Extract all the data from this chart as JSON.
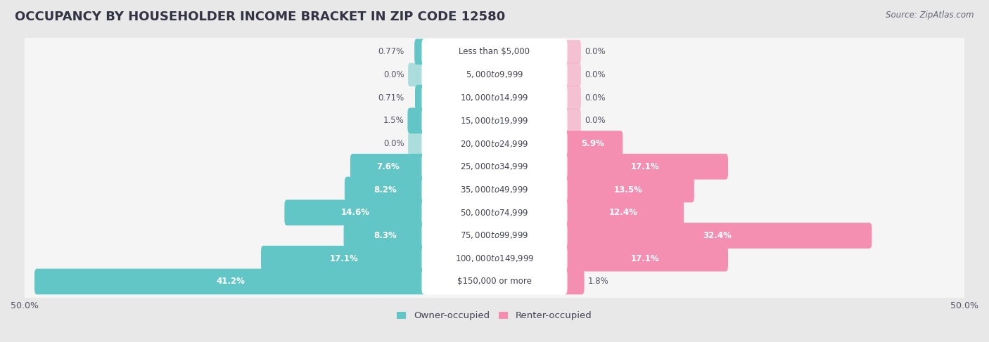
{
  "title": "OCCUPANCY BY HOUSEHOLDER INCOME BRACKET IN ZIP CODE 12580",
  "source": "Source: ZipAtlas.com",
  "categories": [
    "Less than $5,000",
    "$5,000 to $9,999",
    "$10,000 to $14,999",
    "$15,000 to $19,999",
    "$20,000 to $24,999",
    "$25,000 to $34,999",
    "$35,000 to $49,999",
    "$50,000 to $74,999",
    "$75,000 to $99,999",
    "$100,000 to $149,999",
    "$150,000 or more"
  ],
  "owner_values": [
    0.77,
    0.0,
    0.71,
    1.5,
    0.0,
    7.6,
    8.2,
    14.6,
    8.3,
    17.1,
    41.2
  ],
  "renter_values": [
    0.0,
    0.0,
    0.0,
    0.0,
    5.9,
    17.1,
    13.5,
    12.4,
    32.4,
    17.1,
    1.8
  ],
  "owner_color": "#62c6c6",
  "renter_color": "#f48fb1",
  "background_color": "#e8e8e8",
  "row_background_color": "#f5f5f5",
  "bar_bg_color": "#dde8e8",
  "label_pill_color": "#ffffff",
  "axis_max": 50.0,
  "title_fontsize": 13,
  "label_fontsize": 8.5,
  "category_fontsize": 8.5,
  "legend_fontsize": 9.5,
  "source_fontsize": 8.5,
  "value_label_color_dark": "#555566",
  "value_label_color_light": "#ffffff"
}
